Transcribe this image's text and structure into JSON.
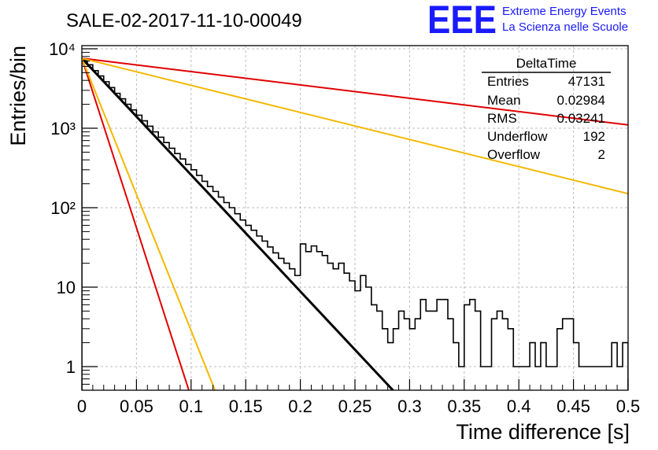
{
  "header": {
    "run_title": "SALE-02-2017-11-10-00049",
    "logo": "EEE",
    "logo_line1": "Extreme Energy Events",
    "logo_line2": "La Scienza nelle Scuole"
  },
  "stats_box": {
    "title": "DeltaTime",
    "rows": [
      {
        "label": "Entries",
        "value": "47131"
      },
      {
        "label": "Mean",
        "value": "0.02984"
      },
      {
        "label": "RMS",
        "value": "0.03241"
      },
      {
        "label": "Underflow",
        "value": "192"
      },
      {
        "label": "Overflow",
        "value": "2"
      }
    ]
  },
  "chart_data": {
    "type": "line",
    "title": "SALE-02-2017-11-10-00049",
    "xlabel": "Time difference [s]",
    "ylabel": "Entries/bin",
    "xlim": [
      0,
      0.5
    ],
    "ylim": [
      0.5,
      14000
    ],
    "y_scale": "log",
    "grid": true,
    "x_ticks": [
      "0",
      "0.05",
      "0.1",
      "0.15",
      "0.2",
      "0.25",
      "0.3",
      "0.35",
      "0.4",
      "0.45",
      "0.5"
    ],
    "y_ticks": [
      "1",
      "10",
      "10²",
      "10³",
      "10⁴"
    ],
    "histogram": {
      "name": "DeltaTime",
      "bin_width": 0.005,
      "x_start": 0,
      "counts": [
        7200,
        6300,
        5300,
        4550,
        3850,
        3250,
        2750,
        2350,
        2000,
        1700,
        1460,
        1240,
        1060,
        900,
        770,
        660,
        560,
        480,
        410,
        350,
        300,
        255,
        215,
        185,
        160,
        136,
        116,
        100,
        84,
        70,
        60,
        52,
        44,
        38,
        32,
        27,
        23,
        20,
        17,
        14,
        35,
        28,
        33,
        28,
        25,
        20,
        17,
        20,
        15,
        12,
        9,
        14,
        10,
        6,
        5,
        3,
        2,
        3,
        5,
        4,
        3,
        4,
        7,
        5,
        5,
        7,
        7,
        4,
        2,
        1,
        6,
        7,
        5,
        1,
        1,
        4,
        5,
        4,
        3,
        1,
        1,
        1,
        2,
        1,
        2,
        1,
        1,
        3,
        4,
        4,
        2,
        1,
        1,
        1,
        1,
        1,
        1,
        2,
        1,
        2
      ]
    },
    "series": [
      {
        "color": "#000000",
        "x": [
          0,
          0.285
        ],
        "y": [
          7600,
          0.5
        ]
      },
      {
        "color": "#e00000",
        "x": [
          0,
          0.5
        ],
        "y": [
          7600,
          1100
        ]
      },
      {
        "color": "#f5b800",
        "x": [
          0,
          0.5
        ],
        "y": [
          7600,
          150
        ]
      },
      {
        "color": "#e00000",
        "x": [
          0,
          0.098
        ],
        "y": [
          7600,
          0.5
        ]
      },
      {
        "color": "#f5b800",
        "x": [
          0,
          0.122
        ],
        "y": [
          7600,
          0.5
        ]
      }
    ]
  }
}
